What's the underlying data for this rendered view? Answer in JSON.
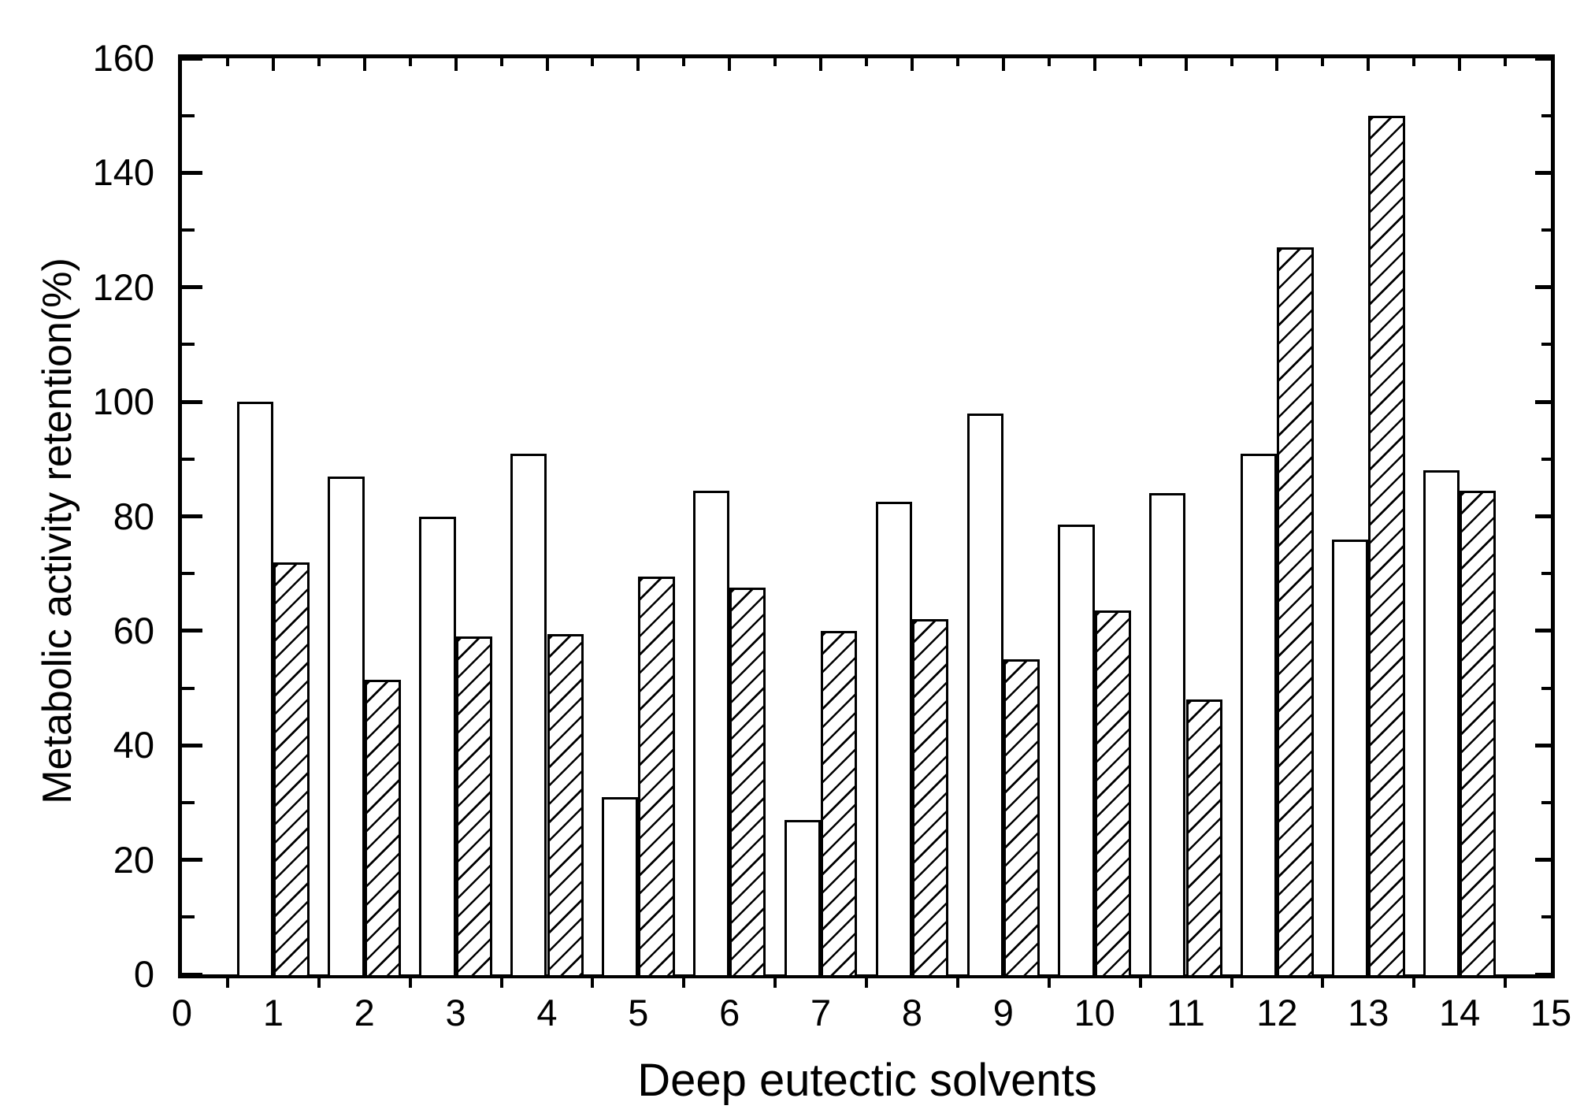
{
  "figure": {
    "background": "#ffffff",
    "ink": "#000000"
  },
  "chart_data": {
    "type": "bar",
    "title": "",
    "xlabel": "Deep eutectic solvents",
    "ylabel": "Metabolic activity retention(%)",
    "categories": [
      1,
      2,
      3,
      4,
      5,
      6,
      7,
      8,
      9,
      10,
      11,
      12,
      13,
      14
    ],
    "series": [
      {
        "name": "open-bars",
        "fill": "open-white",
        "values": [
          100,
          87,
          80,
          91,
          31,
          84.5,
          27,
          82.5,
          98,
          78.5,
          84,
          91,
          76,
          88
        ]
      },
      {
        "name": "hatched-bars",
        "fill": "diagonal-hatch",
        "values": [
          72,
          51.5,
          59,
          59.5,
          69.5,
          67.5,
          60,
          62,
          55,
          63.5,
          48,
          127,
          150,
          84.5
        ]
      }
    ],
    "xlim": [
      0,
      15
    ],
    "ylim": [
      0,
      160
    ],
    "bar_width_units": 0.4,
    "x_tick_labels": [
      "0",
      "1",
      "2",
      "3",
      "4",
      "5",
      "6",
      "7",
      "8",
      "9",
      "10",
      "11",
      "12",
      "13",
      "14",
      "15"
    ],
    "y_tick_labels": [
      "0",
      "20",
      "40",
      "60",
      "80",
      "100",
      "120",
      "140",
      "160"
    ],
    "y_major_step": 20,
    "y_minor_step": 10,
    "x_minor_step": 0.5,
    "grid": "off",
    "legend": "none"
  }
}
